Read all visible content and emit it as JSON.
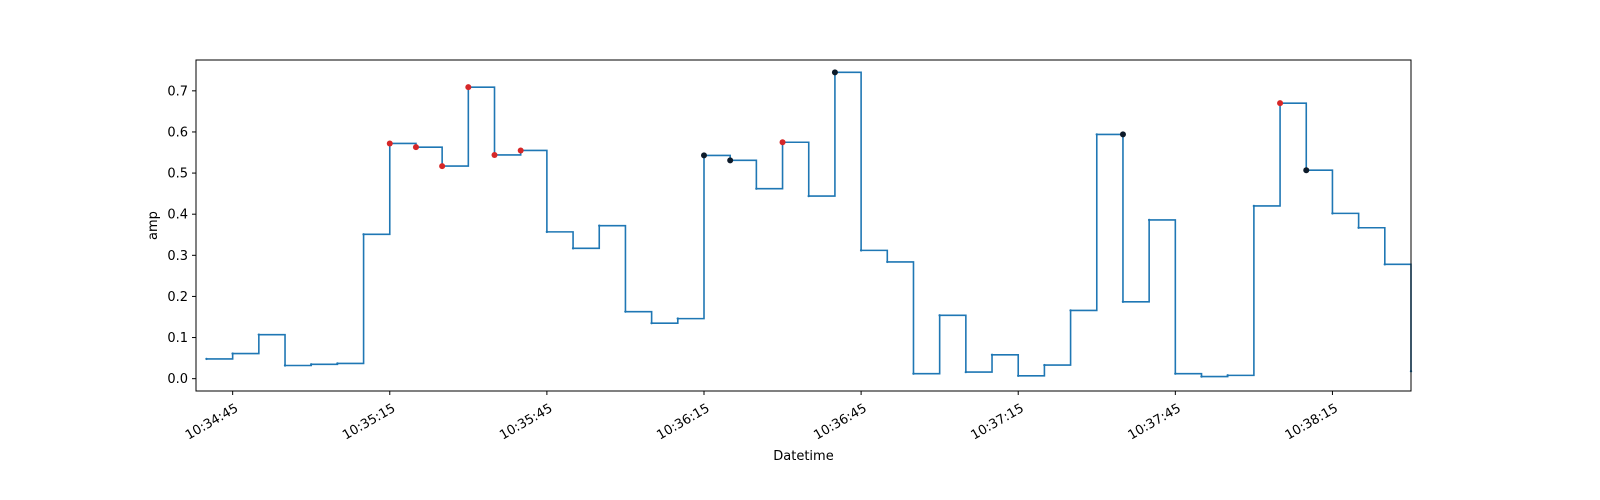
{
  "chart_data": {
    "type": "line",
    "title": "",
    "xlabel": "Datetime",
    "ylabel": "amp",
    "grid": false,
    "step_style": "post",
    "x_start": "10:34:38",
    "x_end": "10:38:30",
    "ylim": [
      -0.03,
      0.775
    ],
    "x_tick_labels": [
      "10:34:45",
      "10:35:15",
      "10:35:45",
      "10:36:15",
      "10:36:45",
      "10:37:15",
      "10:37:45",
      "10:38:15"
    ],
    "y_tick_labels": [
      "0.0",
      "0.1",
      "0.2",
      "0.3",
      "0.4",
      "0.5",
      "0.6",
      "0.7"
    ],
    "colors": {
      "line": "#1f77b4",
      "marker_red": "#d62728",
      "marker_dark": "#0d1b2a"
    },
    "series": [
      {
        "x": [
          "10:34:40",
          "10:34:45",
          "10:34:50",
          "10:34:55",
          "10:35:00",
          "10:35:05",
          "10:35:10",
          "10:35:15",
          "10:35:20",
          "10:35:25",
          "10:35:30",
          "10:35:35",
          "10:35:40",
          "10:35:45",
          "10:35:50",
          "10:35:55",
          "10:36:00",
          "10:36:05",
          "10:36:10",
          "10:36:15",
          "10:36:20",
          "10:36:25",
          "10:36:30",
          "10:36:35",
          "10:36:40",
          "10:36:45",
          "10:36:50",
          "10:36:55",
          "10:37:00",
          "10:37:05",
          "10:37:10",
          "10:37:15",
          "10:37:20",
          "10:37:25",
          "10:37:30",
          "10:37:35",
          "10:37:40",
          "10:37:45",
          "10:37:50",
          "10:37:55",
          "10:38:00",
          "10:38:05",
          "10:38:10",
          "10:38:15",
          "10:38:20",
          "10:38:25"
        ],
        "y": [
          0.048,
          0.061,
          0.107,
          0.032,
          0.035,
          0.037,
          0.351,
          0.572,
          0.563,
          0.517,
          0.709,
          0.544,
          0.555,
          0.357,
          0.317,
          0.372,
          0.163,
          0.135,
          0.146,
          0.543,
          0.531,
          0.462,
          0.575,
          0.444,
          0.745,
          0.312,
          0.284,
          0.012,
          0.154,
          0.016,
          0.058,
          0.007,
          0.033,
          0.166,
          0.594,
          0.187,
          0.386,
          0.012,
          0.005,
          0.008,
          0.42,
          0.67,
          0.507,
          0.402,
          0.367,
          0.278
        ]
      }
    ],
    "end_point": {
      "x": "10:38:30",
      "y": 0.018
    },
    "markers_red": [
      {
        "x": "10:35:15",
        "y": 0.572
      },
      {
        "x": "10:35:20",
        "y": 0.563
      },
      {
        "x": "10:35:25",
        "y": 0.517
      },
      {
        "x": "10:35:30",
        "y": 0.709
      },
      {
        "x": "10:35:35",
        "y": 0.544
      },
      {
        "x": "10:35:40",
        "y": 0.555
      },
      {
        "x": "10:36:30",
        "y": 0.575
      },
      {
        "x": "10:38:05",
        "y": 0.67
      }
    ],
    "markers_dark": [
      {
        "x": "10:36:15",
        "y": 0.543
      },
      {
        "x": "10:36:20",
        "y": 0.531
      },
      {
        "x": "10:36:40",
        "y": 0.745
      },
      {
        "x": "10:37:35",
        "y": 0.594
      },
      {
        "x": "10:38:10",
        "y": 0.507
      }
    ]
  }
}
